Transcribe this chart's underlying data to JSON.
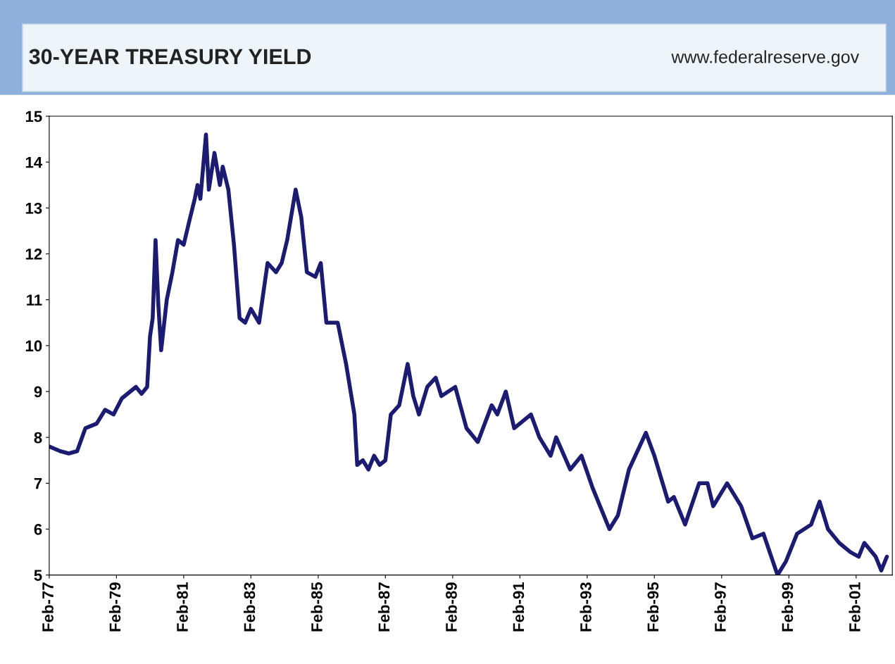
{
  "chart_data": {
    "type": "line",
    "title": "30-YEAR TREASURY YIELD",
    "annotations": [
      "www.federalreserve.gov"
    ],
    "x": [
      "1977-02",
      "1977-06",
      "1977-09",
      "1977-12",
      "1978-03",
      "1978-07",
      "1978-10",
      "1979-01",
      "1979-04",
      "1979-09",
      "1979-11",
      "1980-01",
      "1980-02",
      "1980-03",
      "1980-04",
      "1980-05",
      "1980-06",
      "1980-08",
      "1980-10",
      "1980-12",
      "1981-02",
      "1981-04",
      "1981-06",
      "1981-07",
      "1981-08",
      "1981-10",
      "1981-11",
      "1982-01",
      "1982-03",
      "1982-04",
      "1982-06",
      "1982-08",
      "1982-10",
      "1982-12",
      "1983-02",
      "1983-05",
      "1983-08",
      "1983-11",
      "1984-01",
      "1984-03",
      "1984-06",
      "1984-08",
      "1984-10",
      "1985-01",
      "1985-03",
      "1985-05",
      "1985-09",
      "1985-12",
      "1986-03",
      "1986-04",
      "1986-06",
      "1986-08",
      "1986-10",
      "1986-12",
      "1987-02",
      "1987-04",
      "1987-07",
      "1987-10",
      "1987-12",
      "1988-02",
      "1988-05",
      "1988-08",
      "1988-10",
      "1989-03",
      "1989-07",
      "1989-11",
      "1990-04",
      "1990-06",
      "1990-09",
      "1990-12",
      "1991-06",
      "1991-09",
      "1992-01",
      "1992-03",
      "1992-08",
      "1992-12",
      "1993-04",
      "1993-10",
      "1994-01",
      "1994-05",
      "1994-11",
      "1995-02",
      "1995-07",
      "1995-09",
      "1996-01",
      "1996-06",
      "1996-09",
      "1996-11",
      "1997-04",
      "1997-09",
      "1998-01",
      "1998-05",
      "1998-10",
      "1999-01",
      "1999-05",
      "1999-10",
      "2000-01",
      "2000-04",
      "2000-08",
      "2000-12",
      "2001-03",
      "2001-05",
      "2001-09",
      "2001-11",
      "2002-01"
    ],
    "series": [
      {
        "color": "#1b1b72",
        "values": [
          7.8,
          7.7,
          7.65,
          7.7,
          8.2,
          8.3,
          8.6,
          8.5,
          8.85,
          9.1,
          8.95,
          9.1,
          10.2,
          10.6,
          12.3,
          10.9,
          9.9,
          11.0,
          11.6,
          12.3,
          12.2,
          12.7,
          13.2,
          13.5,
          13.2,
          14.6,
          13.4,
          14.2,
          13.5,
          13.9,
          13.4,
          12.2,
          10.6,
          10.5,
          10.8,
          10.5,
          11.8,
          11.6,
          11.8,
          12.3,
          13.4,
          12.8,
          11.6,
          11.5,
          11.8,
          10.5,
          10.5,
          9.6,
          8.5,
          7.4,
          7.5,
          7.3,
          7.6,
          7.4,
          7.5,
          8.5,
          8.7,
          9.6,
          8.9,
          8.5,
          9.1,
          9.3,
          8.9,
          9.1,
          8.2,
          7.9,
          8.7,
          8.5,
          9.0,
          8.2,
          8.5,
          8.0,
          7.6,
          8.0,
          7.3,
          7.6,
          6.9,
          6.0,
          6.3,
          7.3,
          8.1,
          7.6,
          6.6,
          6.7,
          6.1,
          7.0,
          7.0,
          6.5,
          7.0,
          6.5,
          5.8,
          5.9,
          5.0,
          5.3,
          5.9,
          6.1,
          6.6,
          6.0,
          5.7,
          5.5,
          5.4,
          5.7,
          5.4,
          5.1,
          5.4
        ]
      }
    ],
    "xlim": [
      "1977-02",
      "2002-03"
    ],
    "xticks": [
      {
        "value": "1977-02",
        "label": "Feb-77"
      },
      {
        "value": "1979-02",
        "label": "Feb-79"
      },
      {
        "value": "1981-02",
        "label": "Feb-81"
      },
      {
        "value": "1983-02",
        "label": "Feb-83"
      },
      {
        "value": "1985-02",
        "label": "Feb-85"
      },
      {
        "value": "1987-02",
        "label": "Feb-87"
      },
      {
        "value": "1989-02",
        "label": "Feb-89"
      },
      {
        "value": "1991-02",
        "label": "Feb-91"
      },
      {
        "value": "1993-02",
        "label": "Feb-93"
      },
      {
        "value": "1995-02",
        "label": "Feb-95"
      },
      {
        "value": "1997-02",
        "label": "Feb-97"
      },
      {
        "value": "1999-02",
        "label": "Feb-99"
      },
      {
        "value": "2001-02",
        "label": "Feb-01"
      }
    ],
    "ylim": [
      5,
      15
    ],
    "yticks": [
      5,
      6,
      7,
      8,
      9,
      10,
      11,
      12,
      13,
      14,
      15
    ],
    "grid": false,
    "legend": false
  }
}
